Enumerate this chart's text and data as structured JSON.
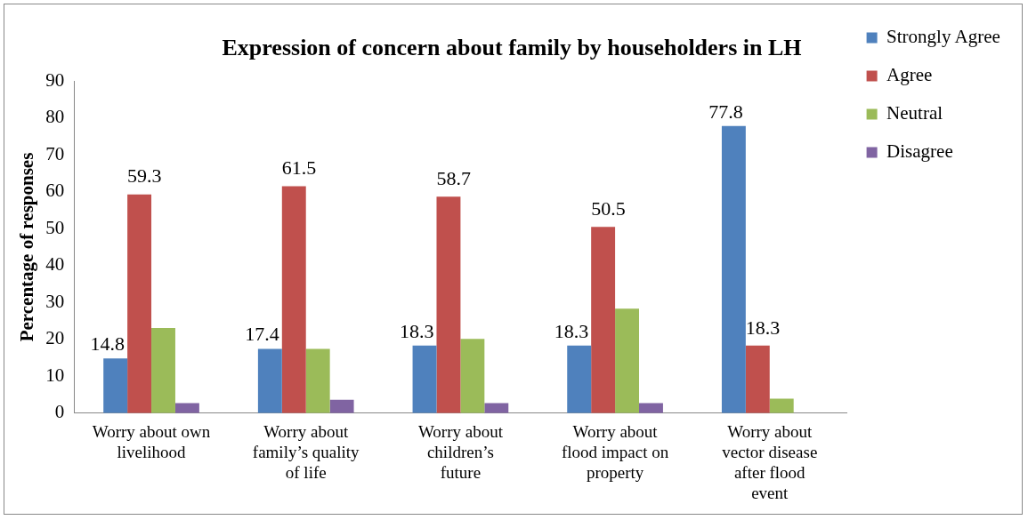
{
  "chart_data": {
    "type": "bar",
    "title": "Expression of concern about family by householders in LH",
    "ylabel": "Percentage of responses",
    "categories": [
      "Worry about own livelihood",
      "Worry about family’s quality of life",
      "Worry about children’s future",
      "Worry about flood impact on property",
      "Worry about vector disease after flood event"
    ],
    "series": [
      {
        "name": "Strongly Agree",
        "color": "#4f81bd",
        "values": [
          14.8,
          17.4,
          18.3,
          18.3,
          77.8
        ],
        "value_labels": [
          "14.8",
          "17.4",
          "18.3",
          "18.3",
          "77.8"
        ]
      },
      {
        "name": "Agree",
        "color": "#c0504d",
        "values": [
          59.3,
          61.5,
          58.7,
          50.5,
          18.3
        ],
        "value_labels": [
          "59.3",
          "61.5",
          "58.7",
          "50.5",
          "18.3"
        ]
      },
      {
        "name": "Neutral",
        "color": "#9bbb59",
        "values": [
          23.1,
          17.4,
          20.1,
          28.3,
          3.9
        ]
      },
      {
        "name": "Disagree",
        "color": "#8064a2",
        "values": [
          2.7,
          3.6,
          2.7,
          2.7,
          null
        ]
      }
    ],
    "ylim": [
      0,
      90
    ],
    "yticks": [
      0,
      10,
      20,
      30,
      40,
      50,
      60,
      70,
      80,
      90
    ],
    "grid": false,
    "legend": "right"
  }
}
